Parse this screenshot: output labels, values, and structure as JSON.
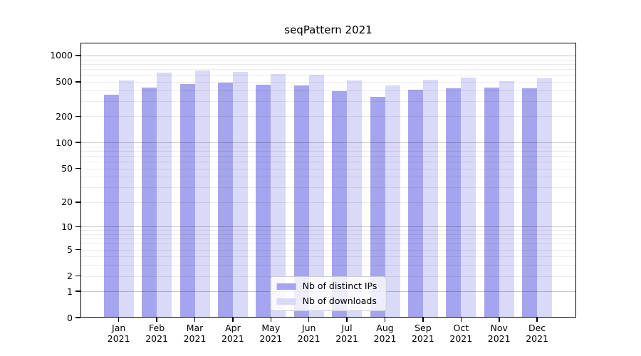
{
  "chart_data": {
    "type": "bar",
    "title": "seqPattern 2021",
    "categories": [
      "Jan 2021",
      "Feb 2021",
      "Mar 2021",
      "Apr 2021",
      "May 2021",
      "Jun 2021",
      "Jul 2021",
      "Aug 2021",
      "Sep 2021",
      "Oct 2021",
      "Nov 2021",
      "Dec 2021"
    ],
    "series": [
      {
        "name": "Nb of distinct IPs",
        "color": "#a5a5ef",
        "values": [
          355,
          430,
          470,
          485,
          465,
          455,
          390,
          335,
          405,
          420,
          425,
          420
        ]
      },
      {
        "name": "Nb of downloads",
        "color": "#d9d9f8",
        "values": [
          520,
          635,
          675,
          645,
          610,
          605,
          520,
          450,
          530,
          555,
          510,
          550
        ]
      }
    ],
    "y_scale": "log10(1+y)",
    "y_ticks": [
      0,
      1,
      2,
      5,
      10,
      20,
      50,
      100,
      200,
      500,
      1000
    ],
    "ylim": [
      0,
      1400
    ],
    "xlabel": "",
    "ylabel": "",
    "grid": true,
    "legend_position": "lower center"
  },
  "colors": {
    "ips_bar": "#a5a5ef",
    "downloads_bar": "#d9d9f8",
    "grid_major": "#c7c7c7",
    "grid_minor": "#ebebeb",
    "axis": "#000000"
  }
}
